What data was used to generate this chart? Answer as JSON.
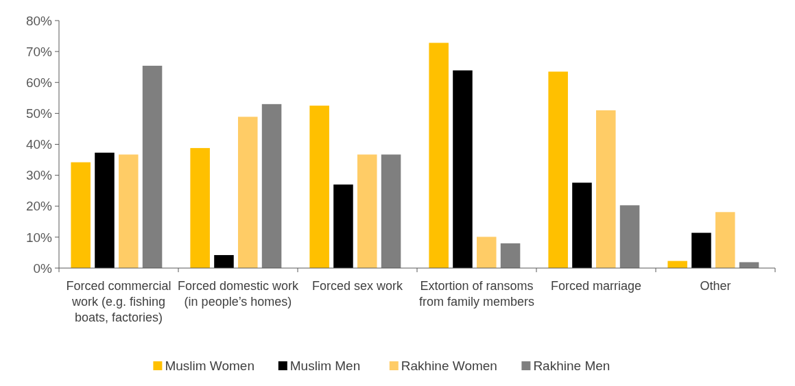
{
  "chart_data": {
    "type": "bar",
    "categories": [
      "Forced commercial work (e.g. fishing boats, factories)",
      "Forced domestic work (in people’s homes)",
      "Forced sex work",
      "Extortion of ransoms from family members",
      "Forced marriage",
      "Other"
    ],
    "series": [
      {
        "name": "Muslim Women",
        "color": "#ffc000",
        "values": [
          34.2,
          38.8,
          52.5,
          72.8,
          63.5,
          2.3
        ]
      },
      {
        "name": "Muslim Men",
        "color": "#000000",
        "values": [
          37.3,
          4.2,
          27,
          63.9,
          27.6,
          11.4
        ]
      },
      {
        "name": "Rakhine Women",
        "color": "#ffcc66",
        "values": [
          36.7,
          48.9,
          36.7,
          10.1,
          51,
          18.1
        ]
      },
      {
        "name": "Rakhine Men",
        "color": "#7f7f7f",
        "values": [
          65.4,
          53,
          36.7,
          8,
          20.3,
          1.9
        ]
      }
    ],
    "ylim": [
      0,
      80
    ],
    "yticks": [
      {
        "value": 0,
        "label": "0%"
      },
      {
        "value": 10,
        "label": "10%"
      },
      {
        "value": 20,
        "label": "20%"
      },
      {
        "value": 30,
        "label": "30%"
      },
      {
        "value": 40,
        "label": "40%"
      },
      {
        "value": 50,
        "label": "50%"
      },
      {
        "value": 60,
        "label": "60%"
      },
      {
        "value": 70,
        "label": "70%"
      },
      {
        "value": 80,
        "label": "80%"
      }
    ],
    "grid": false,
    "legend": "bottom"
  }
}
